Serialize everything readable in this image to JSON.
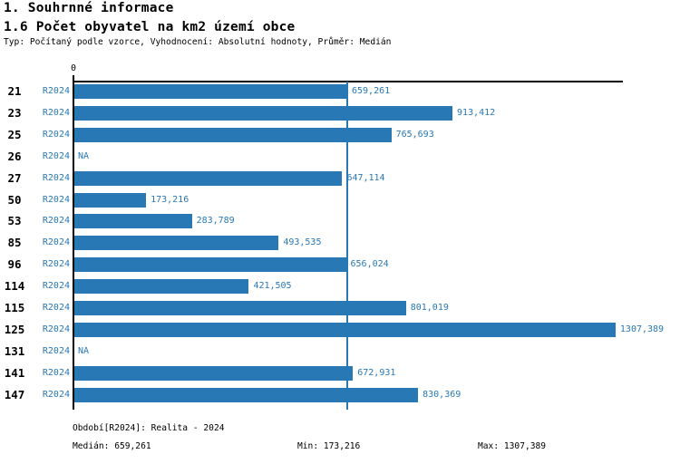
{
  "header": {
    "section_title": "1. Souhrnné informace",
    "chart_title": "1.6 Počet obyvatel na km2 území obce",
    "subtitle": "Typ: Počítaný podle vzorce, Vyhodnocení: Absolutní hodnoty, Průměr: Medián"
  },
  "chart_data": {
    "type": "bar",
    "orientation": "horizontal",
    "axis": {
      "zero_label": "0",
      "xlim": [
        0,
        1325
      ]
    },
    "categories": [
      "21",
      "23",
      "25",
      "26",
      "27",
      "50",
      "53",
      "85",
      "96",
      "114",
      "115",
      "125",
      "131",
      "141",
      "147"
    ],
    "series_period": "R2024",
    "rows": [
      {
        "category": "21",
        "period": "R2024",
        "value": 659.261,
        "label": "659,261"
      },
      {
        "category": "23",
        "period": "R2024",
        "value": 913.412,
        "label": "913,412"
      },
      {
        "category": "25",
        "period": "R2024",
        "value": 765.693,
        "label": "765,693"
      },
      {
        "category": "26",
        "period": "R2024",
        "value": null,
        "label": "NA"
      },
      {
        "category": "27",
        "period": "R2024",
        "value": 647.114,
        "label": "647,114"
      },
      {
        "category": "50",
        "period": "R2024",
        "value": 173.216,
        "label": "173,216"
      },
      {
        "category": "53",
        "period": "R2024",
        "value": 283.789,
        "label": "283,789"
      },
      {
        "category": "85",
        "period": "R2024",
        "value": 493.535,
        "label": "493,535"
      },
      {
        "category": "96",
        "period": "R2024",
        "value": 656.024,
        "label": "656,024"
      },
      {
        "category": "114",
        "period": "R2024",
        "value": 421.505,
        "label": "421,505"
      },
      {
        "category": "115",
        "period": "R2024",
        "value": 801.019,
        "label": "801,019"
      },
      {
        "category": "125",
        "period": "R2024",
        "value": 1307.389,
        "label": "1307,389"
      },
      {
        "category": "131",
        "period": "R2024",
        "value": null,
        "label": "NA"
      },
      {
        "category": "141",
        "period": "R2024",
        "value": 672.931,
        "label": "672,931"
      },
      {
        "category": "147",
        "period": "R2024",
        "value": 830.369,
        "label": "830,369"
      }
    ],
    "median": 659.261,
    "min": 173.216,
    "max": 1307.389,
    "grid": false,
    "legend_position": "none"
  },
  "footer": {
    "period_legend": "Období[R2024]: Realita - 2024",
    "median_label": "Medián: 659,261",
    "min_label": "Min: 173,216",
    "max_label": "Max: 1307,389"
  },
  "colors": {
    "bar": "#2878b5",
    "blue_text": "#2878b5",
    "median_line": "#2878b5",
    "axis": "#000000",
    "header_text": "#000000",
    "background": "#ffffff"
  }
}
